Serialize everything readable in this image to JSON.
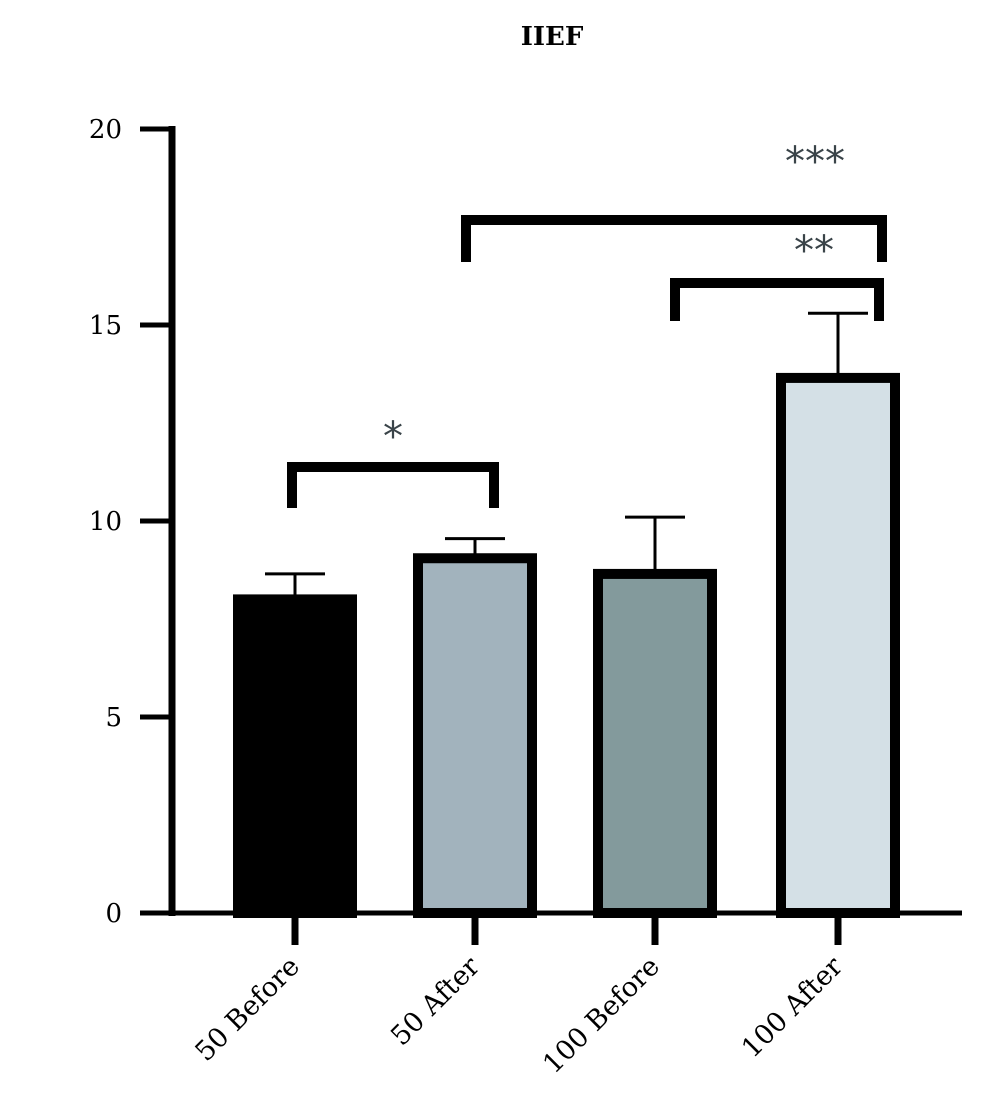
{
  "chart_data": {
    "type": "bar",
    "title": "IIEF",
    "xlabel": "",
    "ylabel": "",
    "ylim": [
      0,
      20
    ],
    "yticks": [
      0,
      5,
      10,
      15,
      20
    ],
    "categories": [
      "50 Before",
      "50 After",
      "100 Before",
      "100 After"
    ],
    "values": [
      8.0,
      9.05,
      8.65,
      13.65
    ],
    "error": [
      0.65,
      0.5,
      1.45,
      1.65
    ],
    "colors": [
      "#000000",
      "#a2b3bd",
      "#839a9c",
      "#d4e0e6"
    ],
    "significance": [
      {
        "from": 0,
        "to": 1,
        "label": "*"
      },
      {
        "from": 2,
        "to": 3,
        "label": "**"
      },
      {
        "from": 1,
        "to": 3,
        "label": "***"
      }
    ],
    "grid": false,
    "legend": "none"
  }
}
